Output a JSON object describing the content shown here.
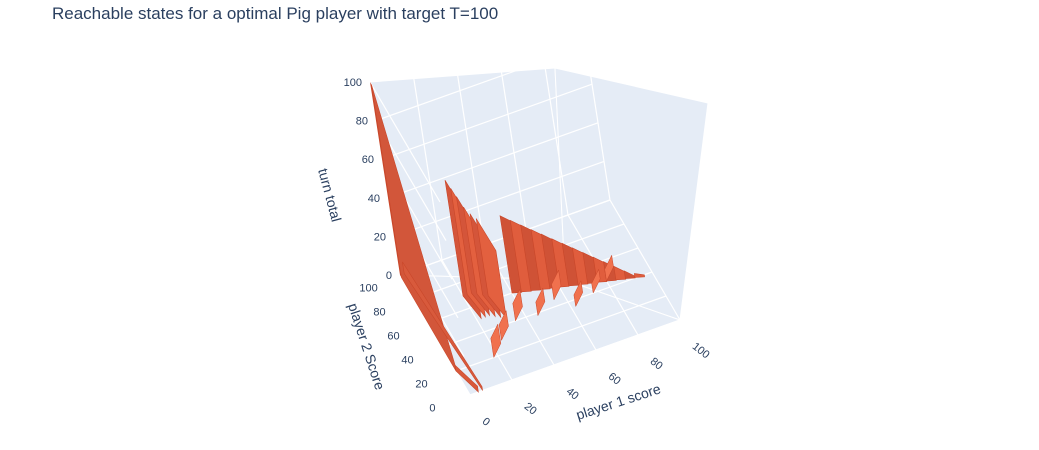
{
  "title": "Reachable states for a optimal Pig player with target T=100",
  "chart_data": {
    "type": "surface-3d",
    "title": "Reachable states for a optimal Pig player with target T=100",
    "xlabel": "player 1 score",
    "ylabel": "player 2 Score",
    "zlabel": "turn total",
    "x_ticks": [
      "0",
      "20",
      "40",
      "60",
      "80",
      "100"
    ],
    "y_ticks": [
      "0",
      "20",
      "40",
      "60",
      "80",
      "100"
    ],
    "z_ticks": [
      "0",
      "20",
      "40",
      "60",
      "80",
      "100"
    ],
    "xlim": [
      0,
      100
    ],
    "ylim": [
      0,
      100
    ],
    "zlim": [
      0,
      100
    ],
    "surface_color": "#e8603f",
    "background_color": "#e5ecf6",
    "grid": true
  }
}
